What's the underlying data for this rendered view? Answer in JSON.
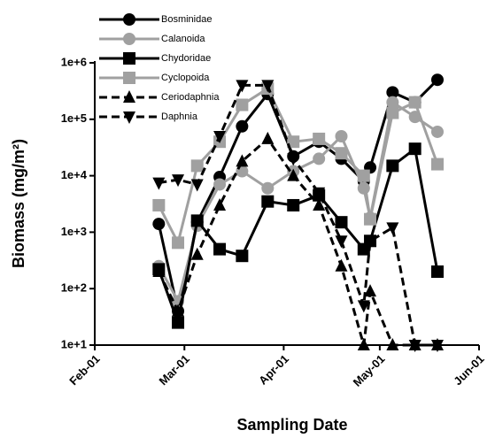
{
  "chart_data": {
    "type": "line",
    "log_y": true,
    "x_label": "Sampling Date",
    "y_label": "Biomass (mg/m²)",
    "x": [
      "Feb-21",
      "Feb-27",
      "Mar-05",
      "Mar-12",
      "Mar-19",
      "Mar-27",
      "Apr-04",
      "Apr-12",
      "Apr-19",
      "Apr-26",
      "Apr-28",
      "May-05",
      "May-12",
      "May-19"
    ],
    "xlim": [
      "Feb-01",
      "Jun-01"
    ],
    "xticks": [
      "Feb-01",
      "Mar-01",
      "Apr-01",
      "May-01",
      "Jun-01"
    ],
    "ylim": [
      10,
      1000000
    ],
    "yticks": [
      {
        "value": 10,
        "label": "1e+1"
      },
      {
        "value": 100,
        "label": "1e+2"
      },
      {
        "value": 1000,
        "label": "1e+3"
      },
      {
        "value": 10000,
        "label": "1e+4"
      },
      {
        "value": 100000,
        "label": "1e+5"
      },
      {
        "value": 1000000,
        "label": "1e+6"
      }
    ],
    "legend": "upper left",
    "series": [
      {
        "name": "Bosminidae",
        "color": "#000000",
        "marker": "circle",
        "dashed": false,
        "values": [
          1400,
          40,
          1500,
          9500,
          75000,
          280000,
          22000,
          40000,
          20000,
          8000,
          14000,
          300000,
          200000,
          500000
        ]
      },
      {
        "name": "Calanoida",
        "color": "#a0a0a0",
        "marker": "circle",
        "dashed": false,
        "values": [
          250,
          60,
          1300,
          7000,
          12000,
          6000,
          12000,
          20000,
          50000,
          6000,
          1800,
          200000,
          110000,
          60000
        ]
      },
      {
        "name": "Chydoridae",
        "color": "#000000",
        "marker": "square",
        "dashed": false,
        "values": [
          220,
          25,
          1600,
          500,
          380,
          3500,
          3000,
          4500,
          1500,
          500,
          700,
          15000,
          30000,
          200
        ]
      },
      {
        "name": "Cyclopoida",
        "color": "#a0a0a0",
        "marker": "square",
        "dashed": false,
        "values": [
          3000,
          650,
          15000,
          40000,
          180000,
          350000,
          40000,
          45000,
          25000,
          10000,
          1700,
          130000,
          200000,
          16000
        ]
      },
      {
        "name": "Ceriodaphnia",
        "color": "#000000",
        "marker": "triangle-up",
        "dashed": true,
        "values": [
          200,
          40,
          400,
          3000,
          18000,
          45000,
          10000,
          3000,
          250,
          10,
          90,
          10,
          10,
          10
        ]
      },
      {
        "name": "Daphnia",
        "color": "#000000",
        "marker": "triangle-down",
        "dashed": true,
        "values": [
          7500,
          8500,
          7000,
          50000,
          400000,
          400000,
          20000,
          5000,
          700,
          50,
          700,
          1200,
          10,
          10
        ]
      }
    ]
  }
}
